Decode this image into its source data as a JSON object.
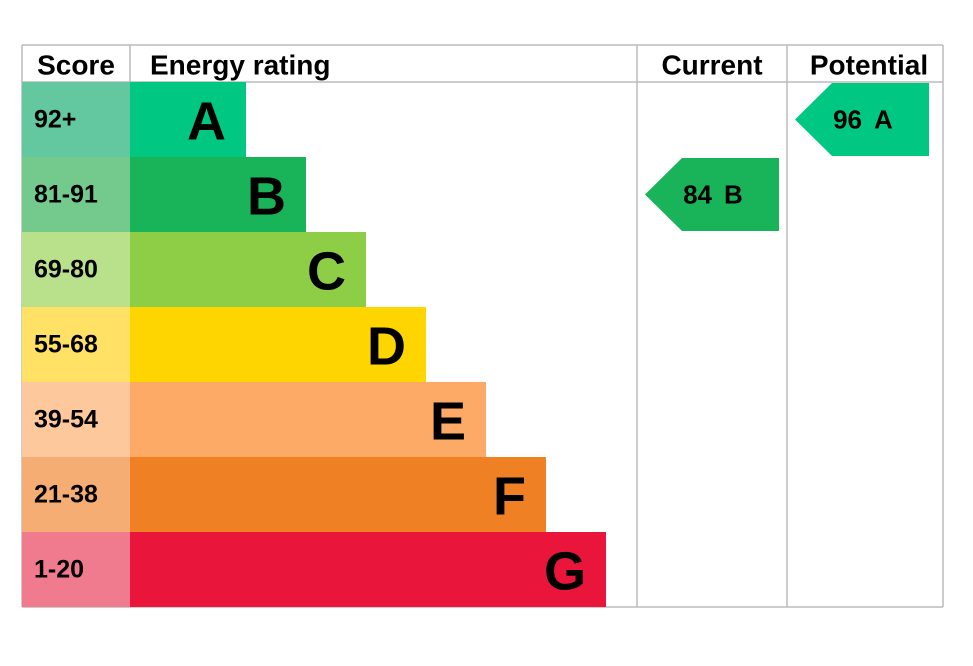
{
  "header": {
    "score": "Score",
    "rating": "Energy rating",
    "current": "Current",
    "potential": "Potential"
  },
  "rows": [
    {
      "score": "92+",
      "letter": "A",
      "color": "#00c781",
      "score_color": "#63c8a0"
    },
    {
      "score": "81-91",
      "letter": "B",
      "color": "#19b459",
      "score_color": "#74ca8d"
    },
    {
      "score": "69-80",
      "letter": "C",
      "color": "#8dce46",
      "score_color": "#b9e08b"
    },
    {
      "score": "55-68",
      "letter": "D",
      "color": "#ffd500",
      "score_color": "#ffe166"
    },
    {
      "score": "39-54",
      "letter": "E",
      "color": "#fcaa65",
      "score_color": "#fdc89b"
    },
    {
      "score": "21-38",
      "letter": "F",
      "color": "#ef8023",
      "score_color": "#f5ad74"
    },
    {
      "score": "1-20",
      "letter": "G",
      "color": "#e9153b",
      "score_color": "#f07a8e"
    }
  ],
  "current": {
    "value": 84,
    "letter": "B"
  },
  "potential": {
    "value": 96,
    "letter": "A"
  }
}
